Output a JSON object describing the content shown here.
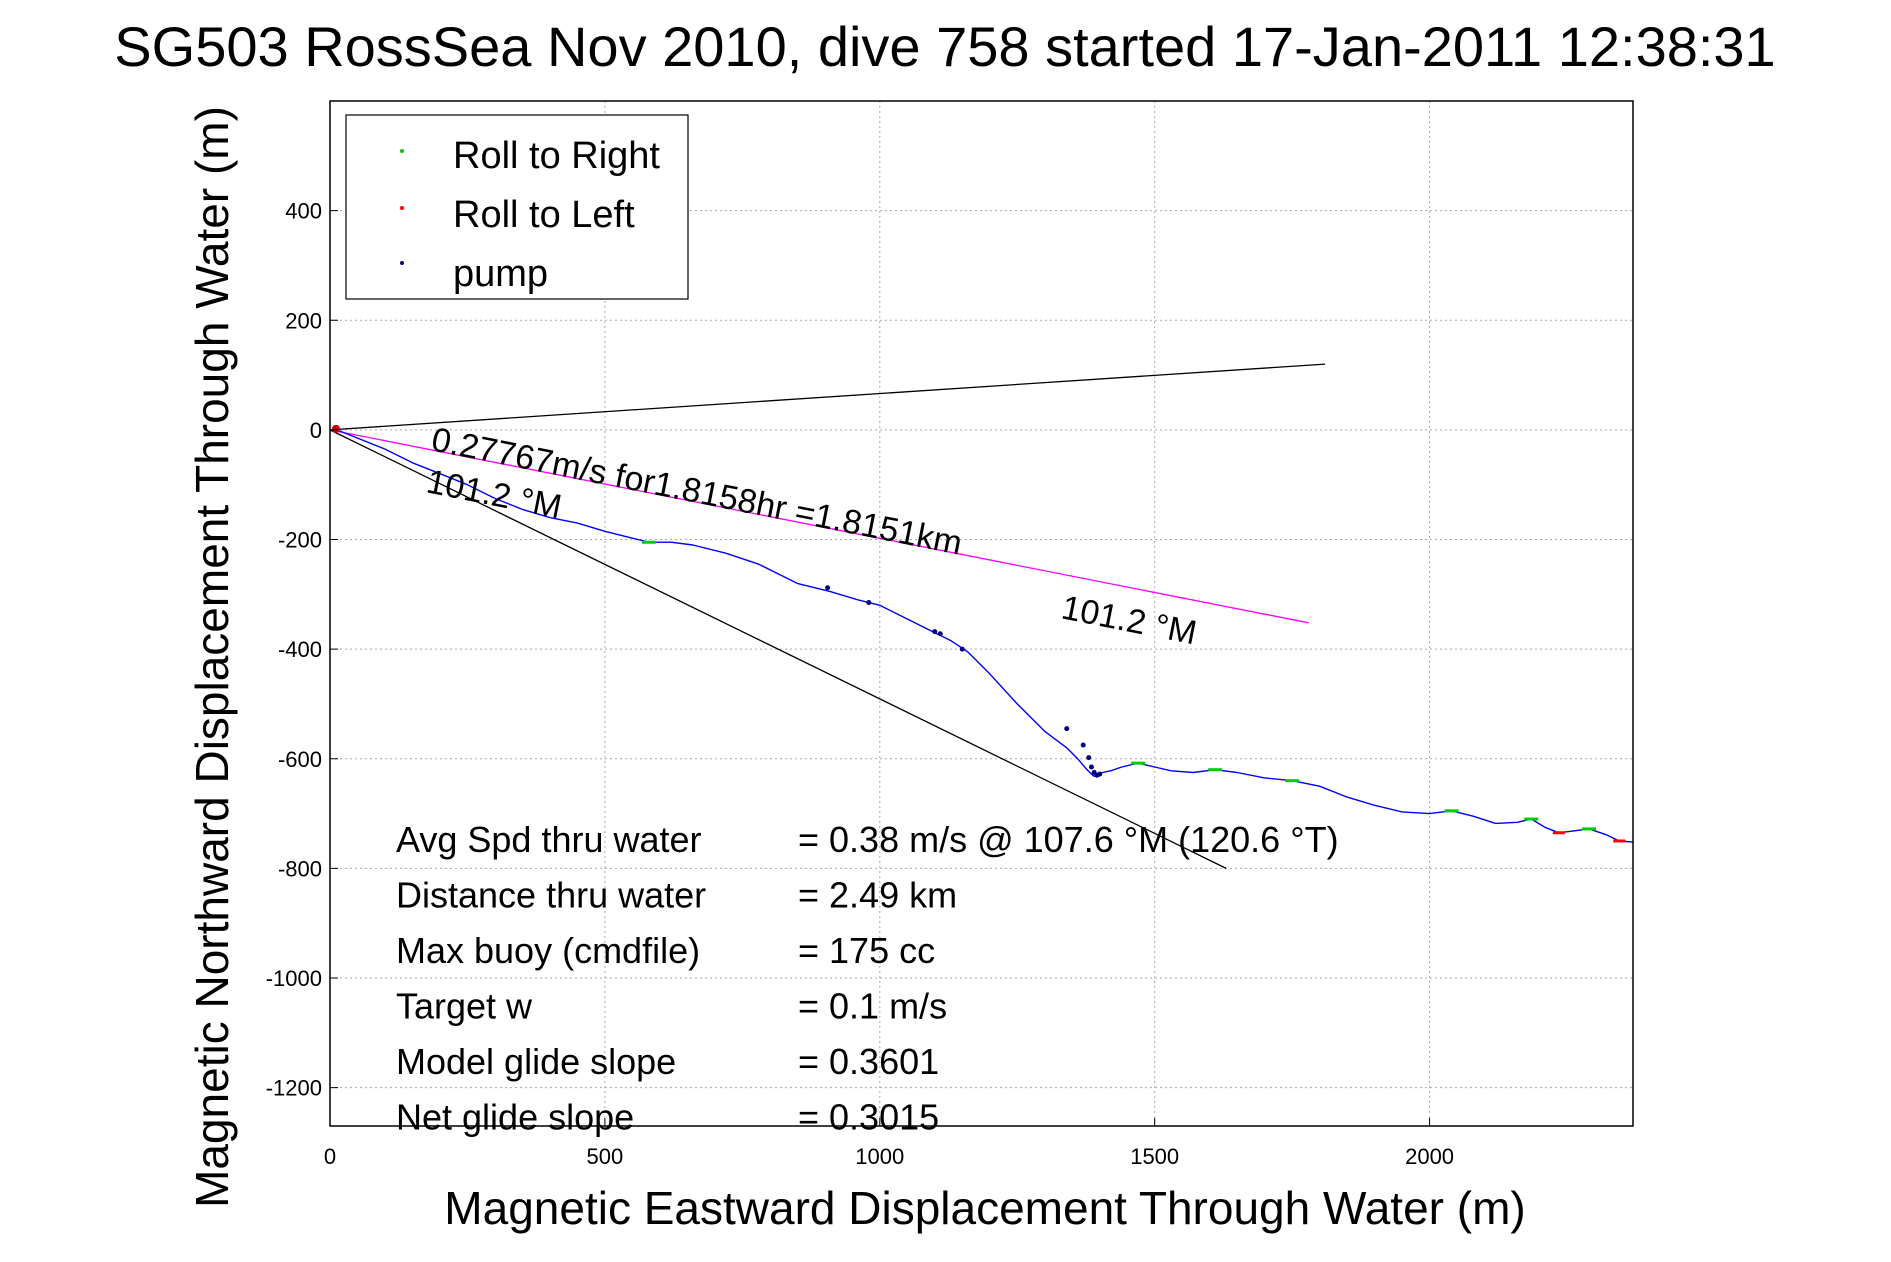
{
  "chart_data": {
    "type": "line",
    "title": "SG503 RossSea Nov 2010, dive 758 started 17-Jan-2011 12:38:31",
    "xlabel": "Magnetic Eastward Displacement Through Water (m)",
    "ylabel": "Magnetic Northward Displacement Through Water (m)",
    "xlim": [
      0,
      2370
    ],
    "ylim": [
      -1270,
      600
    ],
    "xticks": [
      0,
      500,
      1000,
      1500,
      2000
    ],
    "yticks": [
      -1200,
      -1000,
      -800,
      -600,
      -400,
      -200,
      0,
      200,
      400
    ],
    "grid": true,
    "legend_position": "top-left",
    "legend": [
      {
        "label": "Roll to Right",
        "color": "#00cc00"
      },
      {
        "label": "Roll to Left",
        "color": "#ff0000"
      },
      {
        "label": "pump",
        "color": "#000080"
      }
    ],
    "track": {
      "name": "",
      "color": "#0000ff",
      "x": [
        0,
        20,
        50,
        100,
        150,
        200,
        250,
        300,
        350,
        400,
        450,
        500,
        540,
        580,
        620,
        660,
        720,
        780,
        850,
        910,
        960,
        1000,
        1050,
        1100,
        1130,
        1160,
        1200,
        1250,
        1300,
        1340,
        1360,
        1375,
        1385,
        1390,
        1395,
        1405,
        1420,
        1440,
        1470,
        1500,
        1530,
        1570,
        1610,
        1650,
        1700,
        1750,
        1800,
        1850,
        1900,
        1950,
        2000,
        2040,
        2080,
        2120,
        2160,
        2185,
        2210,
        2235,
        2260,
        2290,
        2320,
        2345,
        2370
      ],
      "y": [
        0,
        -3,
        -15,
        -35,
        -60,
        -80,
        -100,
        -125,
        -145,
        -160,
        -170,
        -185,
        -195,
        -205,
        -205,
        -210,
        -225,
        -245,
        -280,
        -295,
        -310,
        -320,
        -345,
        -370,
        -385,
        -405,
        -445,
        -500,
        -550,
        -580,
        -600,
        -618,
        -628,
        -632,
        -628,
        -625,
        -622,
        -615,
        -608,
        -615,
        -622,
        -625,
        -620,
        -625,
        -635,
        -640,
        -650,
        -670,
        -685,
        -697,
        -700,
        -695,
        -705,
        -718,
        -716,
        -710,
        -725,
        -735,
        -732,
        -728,
        -738,
        -750,
        -752
      ],
      "right_roll_x": [
        580,
        1470,
        1610,
        1750,
        2040,
        2185,
        2290
      ],
      "right_roll_y": [
        -205,
        -608,
        -620,
        -640,
        -695,
        -710,
        -728
      ],
      "left_roll_x": [
        2235,
        2345
      ],
      "left_roll_y": [
        -735,
        -750
      ],
      "pump_x": [
        905,
        980,
        1100,
        1110,
        1150,
        1340,
        1370,
        1380,
        1385,
        1390,
        1395,
        1400
      ],
      "pump_y": [
        -288,
        -315,
        -368,
        -372,
        -400,
        -545,
        -575,
        -598,
        -615,
        -625,
        -630,
        -628
      ]
    },
    "reference_lines": [
      {
        "name": "",
        "color": "#000000",
        "x": [
          0,
          1810
        ],
        "y": [
          0,
          120
        ]
      },
      {
        "name": "",
        "color": "#ff00ff",
        "x": [
          0,
          1780
        ],
        "y": [
          0,
          -352
        ]
      },
      {
        "name": "",
        "color": "#000000",
        "x": [
          0,
          1630
        ],
        "y": [
          0,
          -800
        ]
      }
    ],
    "annotations": {
      "speed_text": "0.27767m/s for1.8158hr =1.8151km",
      "heading_upper": "101.2 °M",
      "heading_lower": "101.2 °M"
    },
    "stats": [
      {
        "label": "Avg Spd thru water",
        "value": "=  0.38 m/s @ 107.6 °M (120.6 °T)"
      },
      {
        "label": "Distance thru water",
        "value": "=  2.49 km"
      },
      {
        "label": "Max buoy (cmdfile)",
        "value": "= 175 cc"
      },
      {
        "label": "Target w",
        "value": "= 0.1 m/s"
      },
      {
        "label": "Model glide slope",
        "value": "= 0.3601"
      },
      {
        "label": "Net glide slope",
        "value": "= 0.3015"
      }
    ]
  }
}
